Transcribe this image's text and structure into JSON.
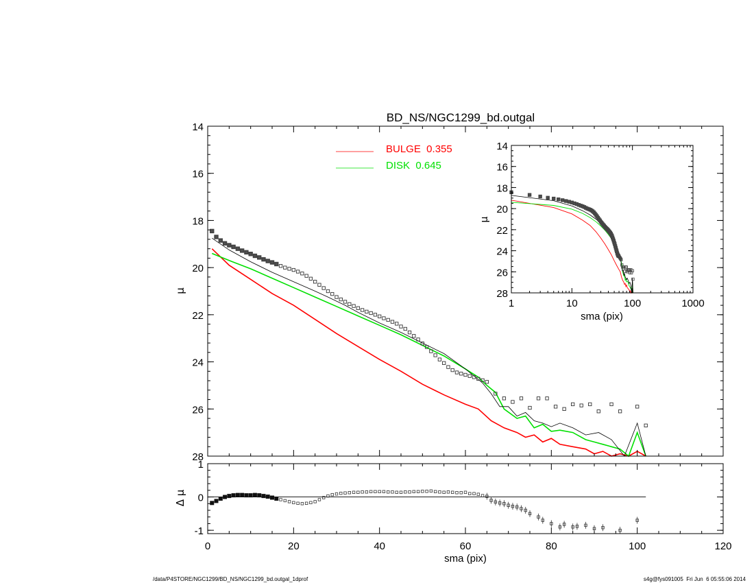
{
  "figure": {
    "title": "BD_NS/NGC1299_bd.outgal",
    "footer_left": "/data/P4STORE/NGC1299/BD_NS/NGC1299_bd.outgal_1dprof",
    "footer_right": "s4g@fys091005  Fri Jun  6 05:55:06 2014"
  },
  "legend": [
    {
      "label": "BULGE  0.355",
      "color": "#ff0000"
    },
    {
      "label": "DISK  0.645",
      "color": "#00e000"
    }
  ],
  "chart_data": [
    {
      "type": "line",
      "name": "main",
      "title": "BD_NS/NGC1299_bd.outgal",
      "xlabel": "sma (pix)",
      "ylabel": "μ",
      "xlim": [
        0,
        120
      ],
      "ylim": [
        28,
        14
      ],
      "y_inverted": true,
      "xticks": [
        0,
        20,
        40,
        60,
        80,
        100,
        120
      ],
      "yticks": [
        14,
        16,
        18,
        20,
        22,
        24,
        26,
        28
      ],
      "colors": {
        "data": "#000000",
        "model": "#000000",
        "bulge": "#ff0000",
        "disk": "#00e000"
      },
      "data_points": {
        "x": [
          1,
          2,
          3,
          4,
          5,
          6,
          7,
          8,
          9,
          10,
          11,
          12,
          13,
          14,
          15,
          16,
          17,
          18,
          19,
          20,
          21,
          22,
          23,
          24,
          25,
          26,
          27,
          28,
          29,
          30,
          31,
          32,
          33,
          34,
          35,
          36,
          37,
          38,
          39,
          40,
          41,
          42,
          43,
          44,
          45,
          46,
          47,
          48,
          49,
          50,
          51,
          52,
          53,
          54,
          55,
          56,
          57,
          58,
          59,
          60,
          61,
          62,
          63,
          64,
          65,
          67,
          69,
          71,
          73,
          75,
          77,
          79,
          81,
          83,
          85,
          87,
          89,
          91,
          94,
          96,
          100,
          102
        ],
        "y": [
          18.45,
          18.7,
          18.85,
          18.97,
          19.05,
          19.12,
          19.2,
          19.28,
          19.35,
          19.42,
          19.5,
          19.57,
          19.65,
          19.72,
          19.78,
          19.85,
          19.93,
          20.0,
          20.05,
          20.1,
          20.17,
          20.25,
          20.35,
          20.47,
          20.6,
          20.73,
          20.87,
          21.0,
          21.12,
          21.25,
          21.35,
          21.45,
          21.55,
          21.63,
          21.72,
          21.8,
          21.87,
          21.93,
          22.0,
          22.07,
          22.15,
          22.22,
          22.3,
          22.38,
          22.5,
          22.6,
          22.75,
          22.9,
          23.05,
          23.22,
          23.37,
          23.55,
          23.72,
          23.9,
          24.05,
          24.22,
          24.35,
          24.45,
          24.5,
          24.55,
          24.6,
          24.65,
          24.72,
          24.78,
          24.85,
          25.35,
          25.55,
          25.7,
          25.55,
          25.95,
          25.55,
          25.55,
          25.9,
          26.0,
          25.8,
          25.85,
          25.8,
          26.1,
          25.8,
          26.1,
          25.9,
          26.7
        ]
      },
      "model_line": {
        "x": [
          1,
          5,
          10,
          15,
          20,
          25,
          28,
          32,
          35,
          40,
          45,
          50,
          55,
          60,
          62,
          64,
          66,
          68,
          70,
          72,
          74,
          76,
          78,
          80,
          82,
          85,
          88,
          91,
          94,
          97,
          100,
          102
        ],
        "y": [
          18.75,
          19.25,
          19.75,
          20.2,
          20.6,
          21.0,
          21.25,
          21.6,
          21.9,
          22.35,
          22.75,
          23.2,
          23.65,
          24.3,
          24.6,
          24.9,
          25.35,
          25.9,
          25.9,
          26.3,
          26.15,
          26.5,
          26.6,
          26.75,
          26.6,
          26.8,
          27.1,
          27.0,
          27.3,
          28.2,
          26.6,
          28.2
        ]
      },
      "bulge_line": {
        "x": [
          1,
          5,
          10,
          15,
          20,
          25,
          30,
          35,
          40,
          45,
          50,
          55,
          60,
          63,
          66,
          69,
          72,
          74,
          76,
          78,
          80,
          82,
          85,
          88,
          90,
          92,
          94,
          96,
          98,
          100,
          102
        ],
        "y": [
          19.2,
          19.9,
          20.5,
          21.1,
          21.6,
          22.2,
          22.8,
          23.35,
          23.9,
          24.4,
          24.95,
          25.4,
          25.8,
          26.0,
          26.5,
          26.8,
          27.0,
          27.2,
          27.1,
          27.4,
          27.25,
          27.5,
          27.6,
          27.7,
          27.9,
          27.8,
          28.0,
          27.9,
          28.2,
          27.8,
          28.3
        ]
      },
      "disk_line": {
        "x": [
          1,
          5,
          10,
          15,
          20,
          25,
          30,
          35,
          40,
          45,
          50,
          55,
          60,
          63,
          65,
          67,
          69,
          72,
          74,
          76,
          78,
          80,
          82,
          85,
          88,
          90,
          92,
          94,
          96,
          98,
          100,
          102
        ],
        "y": [
          19.4,
          19.7,
          20.05,
          20.45,
          20.85,
          21.25,
          21.65,
          22.05,
          22.45,
          22.85,
          23.3,
          23.75,
          24.3,
          24.65,
          25.0,
          25.3,
          26.0,
          26.4,
          26.3,
          26.8,
          26.65,
          26.95,
          26.9,
          27.0,
          27.3,
          27.4,
          27.5,
          27.6,
          27.7,
          28.2,
          27.0,
          28.3
        ]
      }
    },
    {
      "type": "scatter",
      "name": "residuals",
      "xlabel": "sma (pix)",
      "ylabel": "Δ μ",
      "xlim": [
        0,
        120
      ],
      "ylim": [
        -1.1,
        1.0
      ],
      "yticks": [
        -1,
        0,
        1
      ],
      "zero_line": {
        "x": [
          0,
          102
        ],
        "y": [
          0,
          0
        ]
      },
      "points": {
        "x": [
          1,
          2,
          3,
          4,
          5,
          6,
          7,
          8,
          9,
          10,
          11,
          12,
          13,
          14,
          15,
          16,
          17,
          18,
          19,
          20,
          21,
          22,
          23,
          24,
          25,
          26,
          27,
          28,
          29,
          30,
          31,
          32,
          33,
          34,
          35,
          36,
          37,
          38,
          39,
          40,
          41,
          42,
          43,
          44,
          45,
          46,
          47,
          48,
          49,
          50,
          51,
          52,
          53,
          54,
          55,
          56,
          57,
          58,
          59,
          60,
          61,
          62,
          63,
          64,
          65,
          66,
          67,
          68,
          69,
          70,
          71,
          72,
          73,
          74,
          75,
          77,
          78,
          80,
          82,
          83,
          85,
          86,
          88,
          90,
          92,
          96,
          100
        ],
        "y": [
          -0.18,
          -0.12,
          -0.05,
          0.0,
          0.03,
          0.05,
          0.06,
          0.06,
          0.05,
          0.05,
          0.06,
          0.05,
          0.03,
          0.01,
          -0.02,
          -0.05,
          -0.08,
          -0.11,
          -0.14,
          -0.17,
          -0.19,
          -0.2,
          -0.19,
          -0.17,
          -0.14,
          -0.08,
          -0.02,
          0.03,
          0.07,
          0.09,
          0.11,
          0.12,
          0.13,
          0.14,
          0.14,
          0.15,
          0.15,
          0.16,
          0.16,
          0.16,
          0.16,
          0.15,
          0.15,
          0.14,
          0.14,
          0.15,
          0.15,
          0.16,
          0.16,
          0.17,
          0.17,
          0.18,
          0.16,
          0.15,
          0.14,
          0.15,
          0.14,
          0.13,
          0.13,
          0.14,
          0.1,
          0.1,
          0.08,
          0.04,
          0.02,
          -0.1,
          -0.15,
          -0.18,
          -0.2,
          -0.25,
          -0.28,
          -0.3,
          -0.35,
          -0.4,
          -0.5,
          -0.6,
          -0.7,
          -0.8,
          -0.9,
          -0.82,
          -0.9,
          -0.88,
          -0.85,
          -0.95,
          -0.92,
          -1.0,
          -0.7
        ]
      }
    },
    {
      "type": "line",
      "name": "inset",
      "xlabel": "sma (pix)",
      "ylabel": "μ",
      "x_scale": "log",
      "xlim": [
        1,
        1000
      ],
      "ylim": [
        28,
        14
      ],
      "y_inverted": true,
      "xticks": [
        1,
        10,
        100,
        1000
      ],
      "yticks": [
        14,
        16,
        18,
        20,
        22,
        24,
        26,
        28
      ]
    }
  ]
}
